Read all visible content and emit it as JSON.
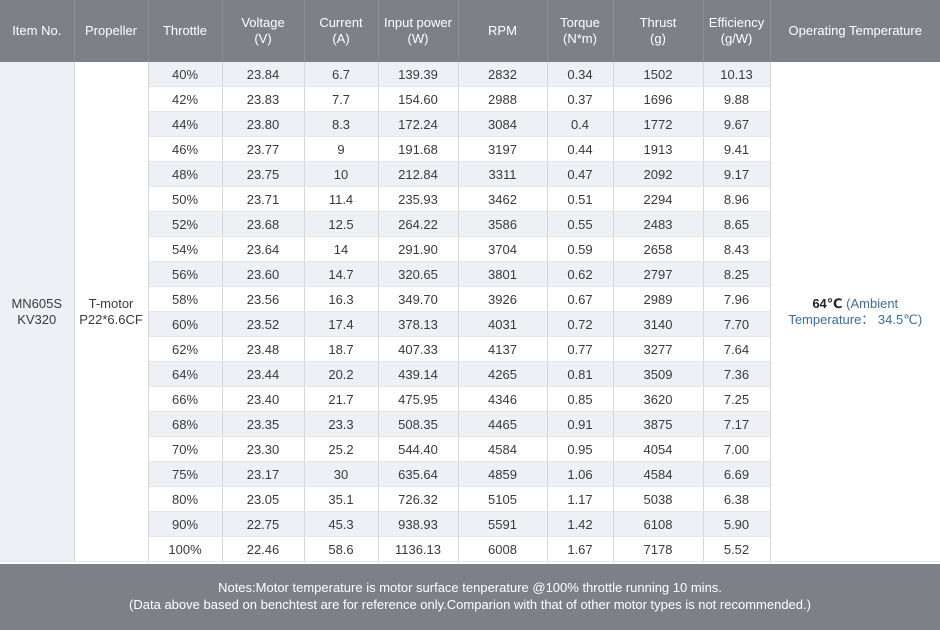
{
  "headers": [
    {
      "line1": "Item No.",
      "line2": ""
    },
    {
      "line1": "Propeller",
      "line2": ""
    },
    {
      "line1": "Throttle",
      "line2": ""
    },
    {
      "line1": "Voltage",
      "line2": "(V)"
    },
    {
      "line1": "Current",
      "line2": "(A)"
    },
    {
      "line1": "Input power",
      "line2": "(W)"
    },
    {
      "line1": "RPM",
      "line2": ""
    },
    {
      "line1": "Torque",
      "line2": "(N*m)"
    },
    {
      "line1": "Thrust",
      "line2": "(g)"
    },
    {
      "line1": "Efficiency",
      "line2": "(g/W)"
    },
    {
      "line1": "Operating Temperature",
      "line2": ""
    }
  ],
  "item": {
    "line1": "MN605S",
    "line2": "KV320"
  },
  "propeller": {
    "line1": "T-motor",
    "line2": "P22*6.6CF"
  },
  "temperature": {
    "main": "64℃",
    "sub1": "(Ambient",
    "sub2": "Temperature： 34.5℃)"
  },
  "rows": [
    [
      "40%",
      "23.84",
      "6.7",
      "139.39",
      "2832",
      "0.34",
      "1502",
      "10.13"
    ],
    [
      "42%",
      "23.83",
      "7.7",
      "154.60",
      "2988",
      "0.37",
      "1696",
      "9.88"
    ],
    [
      "44%",
      "23.80",
      "8.3",
      "172.24",
      "3084",
      "0.4",
      "1772",
      "9.67"
    ],
    [
      "46%",
      "23.77",
      "9",
      "191.68",
      "3197",
      "0.44",
      "1913",
      "9.41"
    ],
    [
      "48%",
      "23.75",
      "10",
      "212.84",
      "3311",
      "0.47",
      "2092",
      "9.17"
    ],
    [
      "50%",
      "23.71",
      "11.4",
      "235.93",
      "3462",
      "0.51",
      "2294",
      "8.96"
    ],
    [
      "52%",
      "23.68",
      "12.5",
      "264.22",
      "3586",
      "0.55",
      "2483",
      "8.65"
    ],
    [
      "54%",
      "23.64",
      "14",
      "291.90",
      "3704",
      "0.59",
      "2658",
      "8.43"
    ],
    [
      "56%",
      "23.60",
      "14.7",
      "320.65",
      "3801",
      "0.62",
      "2797",
      "8.25"
    ],
    [
      "58%",
      "23.56",
      "16.3",
      "349.70",
      "3926",
      "0.67",
      "2989",
      "7.96"
    ],
    [
      "60%",
      "23.52",
      "17.4",
      "378.13",
      "4031",
      "0.72",
      "3140",
      "7.70"
    ],
    [
      "62%",
      "23.48",
      "18.7",
      "407.33",
      "4137",
      "0.77",
      "3277",
      "7.64"
    ],
    [
      "64%",
      "23.44",
      "20.2",
      "439.14",
      "4265",
      "0.81",
      "3509",
      "7.36"
    ],
    [
      "66%",
      "23.40",
      "21.7",
      "475.95",
      "4346",
      "0.85",
      "3620",
      "7.25"
    ],
    [
      "68%",
      "23.35",
      "23.3",
      "508.35",
      "4465",
      "0.91",
      "3875",
      "7.17"
    ],
    [
      "70%",
      "23.30",
      "25.2",
      "544.40",
      "4584",
      "0.95",
      "4054",
      "7.00"
    ],
    [
      "75%",
      "23.17",
      "30",
      "635.64",
      "4859",
      "1.06",
      "4584",
      "6.69"
    ],
    [
      "80%",
      "23.05",
      "35.1",
      "726.32",
      "5105",
      "1.17",
      "5038",
      "6.38"
    ],
    [
      "90%",
      "22.75",
      "45.3",
      "938.93",
      "5591",
      "1.42",
      "6108",
      "5.90"
    ],
    [
      "100%",
      "22.46",
      "58.6",
      "1136.13",
      "6008",
      "1.67",
      "7178",
      "5.52"
    ]
  ],
  "notes": {
    "line1": "Notes:Motor temperature is motor surface tenperature @100% throttle running 10 mins.",
    "line2": "(Data above based on benchtest are for reference only.Comparion with that of other motor types is not recommended.)"
  }
}
